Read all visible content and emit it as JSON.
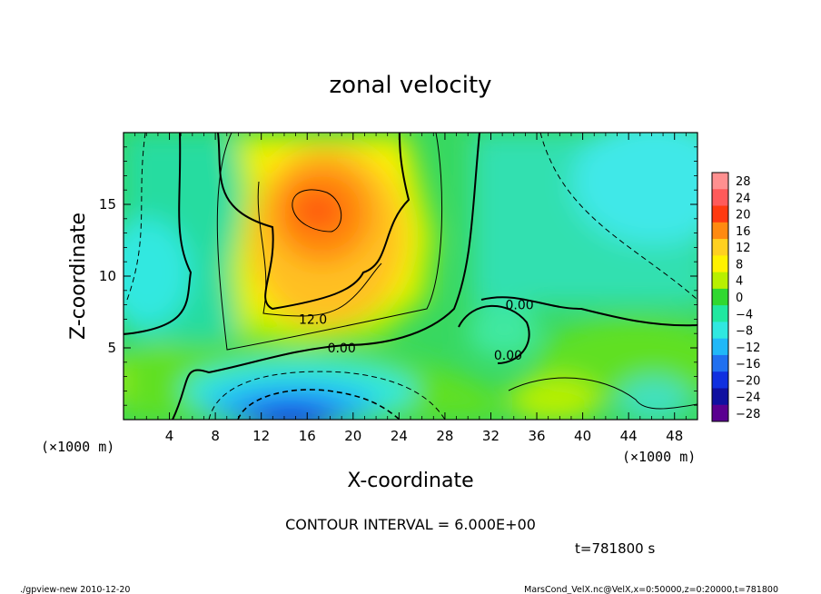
{
  "chart_data": {
    "type": "heatmap",
    "title": "zonal velocity",
    "xlabel": "X-coordinate",
    "ylabel": "Z-coordinate",
    "x_unit": "(×1000 m)",
    "y_unit": "(×1000 m)",
    "xlim": [
      0,
      50
    ],
    "ylim": [
      0,
      20
    ],
    "x_ticks": [
      4,
      8,
      12,
      16,
      20,
      24,
      28,
      32,
      36,
      40,
      44,
      48
    ],
    "y_ticks": [
      5,
      10,
      15
    ],
    "colorbar": {
      "levels": [
        28,
        24,
        20,
        16,
        12,
        8,
        4,
        0,
        -4,
        -8,
        -12,
        -16,
        -20,
        -24,
        -28
      ],
      "labels": [
        "28",
        "24",
        "20",
        "16",
        "12",
        "8",
        "4",
        "0",
        "−4",
        "−8",
        "−12",
        "−16",
        "−20",
        "−24",
        "−28"
      ],
      "colors": [
        "#ff9090",
        "#ff5a5a",
        "#ff3a10",
        "#ff8a10",
        "#ffd020",
        "#fff200",
        "#b8f000",
        "#30d830",
        "#20e8a0",
        "#30e8e0",
        "#20b8f8",
        "#2070f0",
        "#1030e0",
        "#1010a0",
        "#5a0090"
      ]
    },
    "contour_labels": [
      {
        "text": "12.0",
        "x": 16.5,
        "y": 7.0
      },
      {
        "text": "0.00",
        "x": 19.0,
        "y": 5.0
      },
      {
        "text": "0.00",
        "x": 34.5,
        "y": 8.0
      },
      {
        "text": "0.00",
        "x": 33.5,
        "y": 4.5
      }
    ],
    "features": [
      {
        "kind": "max",
        "value": 20,
        "x": 17,
        "z": 14.5
      },
      {
        "kind": "min",
        "value": -22,
        "x": 16,
        "z": 0.5
      },
      {
        "kind": "min",
        "value": -10,
        "x": 45,
        "z": 17
      },
      {
        "kind": "min",
        "value": -8,
        "x": 2,
        "z": 10
      }
    ],
    "contour_interval_text": "CONTOUR INTERVAL = 6.000E+00",
    "time_text": "t=781800 s"
  },
  "footer": {
    "left": "./gpview-new  2010-12-20",
    "right": "MarsCond_VelX.nc@VelX,x=0:50000,z=0:20000,t=781800"
  }
}
